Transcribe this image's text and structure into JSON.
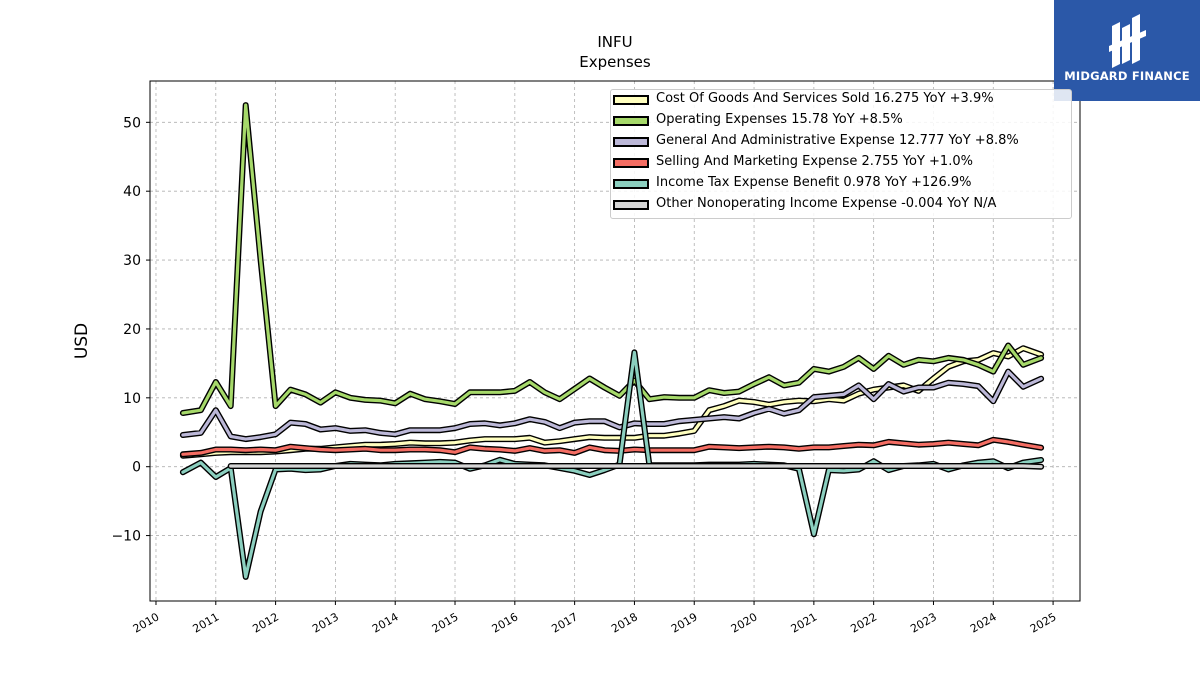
{
  "brand": {
    "name": "MIDGARD FINANCE",
    "color": "#2b58a8"
  },
  "chart_data": {
    "type": "line",
    "title": "INFU",
    "subtitle": "Expenses",
    "xlabel": "",
    "ylabel": "USD",
    "xlim": [
      2009.9,
      2025.45
    ],
    "ylim": [
      -19.5,
      56
    ],
    "xticks": [
      2010,
      2011,
      2012,
      2013,
      2014,
      2015,
      2016,
      2017,
      2018,
      2019,
      2020,
      2021,
      2022,
      2023,
      2024,
      2025
    ],
    "yticks": [
      -10,
      0,
      10,
      20,
      30,
      40,
      50
    ],
    "ytick_labels": [
      "−10",
      "0",
      "10",
      "20",
      "30",
      "40",
      "50"
    ],
    "grid": true,
    "legend_position": "top-right",
    "series": [
      {
        "name": "Cost Of Goods And Services Sold",
        "legend": "Cost Of Goods And Services Sold  16.275 YoY +3.9%",
        "color": "#ffffbf",
        "x": [
          2010.45,
          2010.75,
          2011.0,
          2011.25,
          2011.5,
          2011.75,
          2012.0,
          2012.25,
          2012.5,
          2012.75,
          2013.0,
          2013.25,
          2013.5,
          2013.75,
          2014.0,
          2014.25,
          2014.5,
          2014.75,
          2015.0,
          2015.25,
          2015.5,
          2015.75,
          2016.0,
          2016.25,
          2016.5,
          2016.75,
          2017.0,
          2017.25,
          2017.5,
          2017.75,
          2018.0,
          2018.25,
          2018.5,
          2018.75,
          2019.0,
          2019.25,
          2019.5,
          2019.75,
          2020.0,
          2020.25,
          2020.5,
          2020.75,
          2021.0,
          2021.25,
          2021.5,
          2021.75,
          2022.0,
          2022.25,
          2022.5,
          2022.75,
          2023.0,
          2023.25,
          2023.5,
          2023.75,
          2024.0,
          2024.25,
          2024.5,
          2024.8
        ],
        "values": [
          1.6,
          1.8,
          2.0,
          2.1,
          2.1,
          2.1,
          2.2,
          2.4,
          2.6,
          2.6,
          2.8,
          3.0,
          3.2,
          3.2,
          3.3,
          3.5,
          3.4,
          3.4,
          3.5,
          3.8,
          4.0,
          4.0,
          4.0,
          4.2,
          3.5,
          3.7,
          4.0,
          4.3,
          4.2,
          4.2,
          4.2,
          4.5,
          4.5,
          4.8,
          5.2,
          8.2,
          8.8,
          9.6,
          9.4,
          9.0,
          9.4,
          9.6,
          9.5,
          9.8,
          9.6,
          10.6,
          11.2,
          11.5,
          11.8,
          11.0,
          12.8,
          14.5,
          15.3,
          15.5,
          16.5,
          16.0,
          17.2,
          16.275
        ]
      },
      {
        "name": "Operating Expenses",
        "legend": "Operating Expenses  15.78 YoY +8.5%",
        "color": "#a6d96a",
        "x": [
          2010.45,
          2010.75,
          2011.0,
          2011.25,
          2011.5,
          2011.75,
          2012.0,
          2012.25,
          2012.5,
          2012.75,
          2013.0,
          2013.25,
          2013.5,
          2013.75,
          2014.0,
          2014.25,
          2014.5,
          2014.75,
          2015.0,
          2015.25,
          2015.5,
          2015.75,
          2016.0,
          2016.25,
          2016.5,
          2016.75,
          2017.0,
          2017.25,
          2017.5,
          2017.75,
          2018.0,
          2018.25,
          2018.5,
          2018.75,
          2019.0,
          2019.25,
          2019.5,
          2019.75,
          2020.0,
          2020.25,
          2020.5,
          2020.75,
          2021.0,
          2021.25,
          2021.5,
          2021.75,
          2022.0,
          2022.25,
          2022.5,
          2022.75,
          2023.0,
          2023.25,
          2023.5,
          2023.75,
          2024.0,
          2024.25,
          2024.5,
          2024.8
        ],
        "values": [
          7.8,
          8.2,
          12.3,
          8.8,
          52.5,
          30.0,
          8.8,
          11.2,
          10.5,
          9.3,
          10.8,
          10.0,
          9.7,
          9.6,
          9.2,
          10.6,
          9.8,
          9.5,
          9.1,
          10.8,
          10.8,
          10.8,
          11.0,
          12.3,
          10.8,
          9.8,
          11.3,
          12.8,
          11.5,
          10.3,
          12.5,
          9.8,
          10.1,
          10.0,
          10.0,
          11.1,
          10.7,
          10.9,
          12.0,
          13.0,
          11.8,
          12.2,
          14.2,
          13.8,
          14.5,
          15.8,
          14.2,
          16.1,
          14.8,
          15.5,
          15.3,
          15.8,
          15.5,
          14.8,
          13.8,
          17.6,
          14.8,
          15.78
        ]
      },
      {
        "name": "General And Administrative Expense",
        "legend": "General And Administrative Expense  12.777 YoY +8.8%",
        "color": "#bcb8d8",
        "x": [
          2010.45,
          2010.75,
          2011.0,
          2011.25,
          2011.5,
          2011.75,
          2012.0,
          2012.25,
          2012.5,
          2012.75,
          2013.0,
          2013.25,
          2013.5,
          2013.75,
          2014.0,
          2014.25,
          2014.5,
          2014.75,
          2015.0,
          2015.25,
          2015.5,
          2015.75,
          2016.0,
          2016.25,
          2016.5,
          2016.75,
          2017.0,
          2017.25,
          2017.5,
          2017.75,
          2018.0,
          2018.25,
          2018.5,
          2018.75,
          2019.0,
          2019.25,
          2019.5,
          2019.75,
          2020.0,
          2020.25,
          2020.5,
          2020.75,
          2021.0,
          2021.25,
          2021.5,
          2021.75,
          2022.0,
          2022.25,
          2022.5,
          2022.75,
          2023.0,
          2023.25,
          2023.5,
          2023.75,
          2024.0,
          2024.25,
          2024.5,
          2024.8
        ],
        "values": [
          4.6,
          4.9,
          8.2,
          4.4,
          4.0,
          4.3,
          4.7,
          6.4,
          6.2,
          5.4,
          5.6,
          5.2,
          5.3,
          4.9,
          4.7,
          5.3,
          5.3,
          5.3,
          5.6,
          6.2,
          6.3,
          6.0,
          6.3,
          6.9,
          6.5,
          5.6,
          6.4,
          6.6,
          6.6,
          5.7,
          6.3,
          6.2,
          6.2,
          6.6,
          6.8,
          7.0,
          7.2,
          7.0,
          7.8,
          8.4,
          7.7,
          8.2,
          10.1,
          10.3,
          10.5,
          11.8,
          9.8,
          12.0,
          10.9,
          11.5,
          11.5,
          12.2,
          12.0,
          11.7,
          9.5,
          13.8,
          11.6,
          12.777
        ]
      },
      {
        "name": "Selling And Marketing Expense",
        "legend": "Selling And Marketing Expense  2.755 YoY +1.0%",
        "color": "#f46d63",
        "x": [
          2010.45,
          2010.75,
          2011.0,
          2011.25,
          2011.5,
          2011.75,
          2012.0,
          2012.25,
          2012.5,
          2012.75,
          2013.0,
          2013.25,
          2013.5,
          2013.75,
          2014.0,
          2014.25,
          2014.5,
          2014.75,
          2015.0,
          2015.25,
          2015.5,
          2015.75,
          2016.0,
          2016.25,
          2016.5,
          2016.75,
          2017.0,
          2017.25,
          2017.5,
          2017.75,
          2018.0,
          2018.25,
          2018.5,
          2018.75,
          2019.0,
          2019.25,
          2019.5,
          2019.75,
          2020.0,
          2020.25,
          2020.5,
          2020.75,
          2021.0,
          2021.25,
          2021.5,
          2021.75,
          2022.0,
          2022.25,
          2022.5,
          2022.75,
          2023.0,
          2023.25,
          2023.5,
          2023.75,
          2024.0,
          2024.25,
          2024.5,
          2024.8
        ],
        "values": [
          1.8,
          2.0,
          2.5,
          2.5,
          2.4,
          2.5,
          2.4,
          2.9,
          2.7,
          2.5,
          2.4,
          2.5,
          2.6,
          2.4,
          2.4,
          2.5,
          2.5,
          2.4,
          2.1,
          2.8,
          2.6,
          2.5,
          2.3,
          2.7,
          2.3,
          2.4,
          2.0,
          2.8,
          2.4,
          2.3,
          2.5,
          2.4,
          2.4,
          2.4,
          2.4,
          2.9,
          2.8,
          2.7,
          2.8,
          2.9,
          2.8,
          2.6,
          2.8,
          2.8,
          3.0,
          3.2,
          3.1,
          3.6,
          3.4,
          3.2,
          3.3,
          3.5,
          3.3,
          3.1,
          3.9,
          3.6,
          3.2,
          2.755
        ]
      },
      {
        "name": "Income Tax Expense Benefit",
        "legend": "Income Tax Expense Benefit  0.978 YoY +126.9%",
        "color": "#8bcfbf",
        "x": [
          2010.45,
          2010.75,
          2011.0,
          2011.25,
          2011.5,
          2011.75,
          2012.0,
          2012.25,
          2012.5,
          2012.75,
          2013.0,
          2013.25,
          2013.5,
          2013.75,
          2014.0,
          2014.25,
          2014.5,
          2014.75,
          2015.0,
          2015.25,
          2015.5,
          2015.75,
          2016.0,
          2016.25,
          2016.5,
          2016.75,
          2017.0,
          2017.25,
          2017.5,
          2017.75,
          2018.0,
          2018.25,
          2018.5,
          2018.75,
          2019.0,
          2019.25,
          2019.5,
          2019.75,
          2020.0,
          2020.25,
          2020.5,
          2020.75,
          2021.0,
          2021.25,
          2021.5,
          2021.75,
          2022.0,
          2022.25,
          2022.5,
          2022.75,
          2023.0,
          2023.25,
          2023.5,
          2023.75,
          2024.0,
          2024.25,
          2024.5,
          2024.8
        ],
        "values": [
          -0.8,
          0.6,
          -1.5,
          -0.2,
          -16.0,
          -6.5,
          -0.4,
          -0.3,
          -0.5,
          -0.4,
          0.1,
          0.4,
          0.3,
          0.2,
          0.4,
          0.5,
          0.6,
          0.7,
          0.6,
          -0.3,
          0.2,
          1.0,
          0.4,
          0.3,
          0.2,
          -0.2,
          -0.6,
          -1.2,
          -0.5,
          0.3,
          16.6,
          0.2,
          0.2,
          0.2,
          0.2,
          0.3,
          0.3,
          0.3,
          0.4,
          0.3,
          0.2,
          -0.3,
          -9.8,
          -0.5,
          -0.6,
          -0.4,
          0.8,
          -0.5,
          0.1,
          0.2,
          0.4,
          -0.4,
          0.2,
          0.6,
          0.8,
          -0.2,
          0.6,
          0.978
        ]
      },
      {
        "name": "Other Nonoperating Income Expense",
        "legend": "Other Nonoperating Income Expense  -0.004 YoY N/A",
        "color": "#d5d5d5",
        "x": [
          2011.25,
          2011.5,
          2011.75,
          2012.0,
          2012.25,
          2012.5,
          2012.75,
          2013.0,
          2013.25,
          2013.5,
          2013.75,
          2014.0,
          2014.25,
          2014.5,
          2014.75,
          2015.0,
          2015.25,
          2015.5,
          2015.75,
          2016.0,
          2016.25,
          2016.5,
          2016.75,
          2017.0,
          2017.25,
          2017.5,
          2017.75,
          2018.0,
          2018.25,
          2018.5,
          2018.75,
          2019.0,
          2019.25,
          2019.5,
          2019.75,
          2020.0,
          2020.25,
          2020.5,
          2020.75,
          2021.0,
          2021.25,
          2021.5,
          2021.75,
          2022.0,
          2022.25,
          2022.5,
          2022.75,
          2023.0,
          2023.25,
          2023.5,
          2023.75,
          2024.0,
          2024.25,
          2024.5,
          2024.8
        ],
        "values": [
          0.1,
          0.1,
          0.1,
          0.1,
          0.1,
          0.1,
          0.1,
          0.1,
          0.1,
          0.1,
          0.1,
          0.1,
          0.1,
          0.1,
          0.1,
          0.1,
          0.1,
          0.1,
          0.1,
          0.1,
          0.1,
          0.1,
          0.1,
          0.1,
          0.1,
          0.1,
          0.1,
          0.1,
          0.1,
          0.1,
          0.1,
          0.1,
          0.1,
          0.1,
          0.1,
          0.1,
          0.1,
          0.1,
          0.1,
          0.1,
          0.1,
          0.1,
          0.1,
          0.1,
          0.1,
          0.1,
          0.1,
          0.1,
          0.1,
          0.1,
          0.1,
          0.1,
          0.1,
          0.1,
          -0.004
        ]
      }
    ]
  }
}
